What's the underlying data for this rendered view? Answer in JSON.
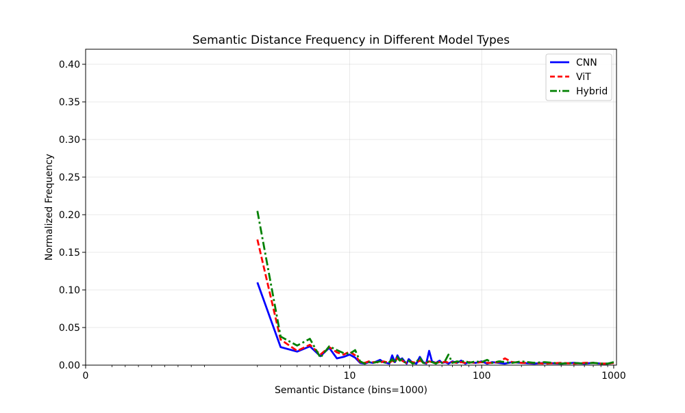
{
  "chart_data": {
    "type": "line",
    "title": "Semantic Distance Frequency in Different Model Types",
    "xlabel": "Semantic Distance (bins=1000)",
    "ylabel": "Normalized Frequency",
    "xscale": "symlog",
    "xlim": [
      0,
      1050
    ],
    "ylim": [
      0,
      0.42
    ],
    "xticks": [
      {
        "value": 0,
        "label": "0"
      },
      {
        "value": 10,
        "label": "10"
      },
      {
        "value": 100,
        "label": "100"
      },
      {
        "value": 1000,
        "label": "1000"
      }
    ],
    "yticks": [
      {
        "value": 0.0,
        "label": "0.00"
      },
      {
        "value": 0.05,
        "label": "0.05"
      },
      {
        "value": 0.1,
        "label": "0.10"
      },
      {
        "value": 0.15,
        "label": "0.15"
      },
      {
        "value": 0.2,
        "label": "0.20"
      },
      {
        "value": 0.25,
        "label": "0.25"
      },
      {
        "value": 0.3,
        "label": "0.30"
      },
      {
        "value": 0.35,
        "label": "0.35"
      },
      {
        "value": 0.4,
        "label": "0.40"
      }
    ],
    "grid": true,
    "legend_position": "top-right",
    "series": [
      {
        "name": "CNN",
        "color": "#0000ff",
        "dash": "solid",
        "x": [
          2,
          3,
          4,
          5,
          6,
          7,
          8,
          9,
          10,
          11,
          12,
          13,
          14,
          15,
          16,
          17,
          18,
          19,
          20,
          21,
          22,
          23,
          24,
          25,
          26,
          27,
          28,
          30,
          32,
          34,
          36,
          38,
          40,
          42,
          45,
          48,
          50,
          53,
          56,
          60,
          65,
          70,
          75,
          80,
          90,
          100,
          110,
          120,
          135,
          150,
          170,
          200,
          250,
          300,
          400,
          500,
          600,
          700,
          800,
          900,
          1000
        ],
        "y": [
          0.11,
          0.024,
          0.018,
          0.025,
          0.012,
          0.023,
          0.009,
          0.011,
          0.014,
          0.01,
          0.003,
          0.002,
          0.004,
          0.003,
          0.005,
          0.007,
          0.004,
          0.003,
          0.002,
          0.013,
          0.004,
          0.013,
          0.007,
          0.009,
          0.005,
          0.002,
          0.008,
          0.003,
          0.002,
          0.011,
          0.004,
          0.002,
          0.019,
          0.005,
          0.003,
          0.006,
          0.003,
          0.004,
          0.002,
          0.005,
          0.003,
          0.006,
          0.002,
          0.004,
          0.003,
          0.005,
          0.002,
          0.004,
          0.003,
          0.002,
          0.004,
          0.003,
          0.002,
          0.003,
          0.002,
          0.003,
          0.002,
          0.003,
          0.002,
          0.002,
          0.003
        ]
      },
      {
        "name": "ViT",
        "color": "#ff0000",
        "dash": "dashed",
        "x": [
          2,
          3,
          4,
          5,
          6,
          7,
          8,
          9,
          10,
          11,
          12,
          13,
          14,
          15,
          16,
          17,
          18,
          19,
          20,
          21,
          22,
          23,
          24,
          25,
          26,
          27,
          28,
          30,
          32,
          34,
          36,
          38,
          40,
          42,
          45,
          48,
          50,
          53,
          56,
          60,
          65,
          70,
          75,
          80,
          90,
          100,
          110,
          120,
          135,
          150,
          170,
          200,
          250,
          300,
          400,
          500,
          600,
          700,
          800,
          900,
          1000
        ],
        "y": [
          0.167,
          0.034,
          0.019,
          0.027,
          0.014,
          0.024,
          0.017,
          0.014,
          0.018,
          0.013,
          0.004,
          0.003,
          0.005,
          0.004,
          0.004,
          0.003,
          0.005,
          0.004,
          0.003,
          0.006,
          0.004,
          0.01,
          0.005,
          0.006,
          0.004,
          0.003,
          0.005,
          0.004,
          0.003,
          0.006,
          0.004,
          0.003,
          0.005,
          0.004,
          0.003,
          0.004,
          0.003,
          0.005,
          0.003,
          0.004,
          0.003,
          0.004,
          0.003,
          0.004,
          0.003,
          0.004,
          0.003,
          0.003,
          0.004,
          0.009,
          0.004,
          0.003,
          0.003,
          0.002,
          0.003,
          0.002,
          0.003,
          0.003,
          0.002,
          0.002,
          0.003
        ]
      },
      {
        "name": "Hybrid",
        "color": "#008000",
        "dash": "dashdot",
        "x": [
          2,
          3,
          4,
          5,
          6,
          7,
          8,
          9,
          10,
          11,
          12,
          13,
          14,
          15,
          16,
          17,
          18,
          19,
          20,
          21,
          22,
          23,
          24,
          25,
          26,
          27,
          28,
          30,
          32,
          34,
          36,
          38,
          40,
          42,
          45,
          48,
          50,
          53,
          56,
          60,
          65,
          70,
          75,
          80,
          90,
          100,
          110,
          120,
          135,
          150,
          170,
          200,
          250,
          300,
          400,
          500,
          600,
          700,
          800,
          900,
          1000
        ],
        "y": [
          0.205,
          0.038,
          0.026,
          0.035,
          0.01,
          0.025,
          0.02,
          0.016,
          0.015,
          0.02,
          0.005,
          0.002,
          0.004,
          0.003,
          0.004,
          0.005,
          0.004,
          0.003,
          0.004,
          0.008,
          0.003,
          0.011,
          0.006,
          0.008,
          0.004,
          0.003,
          0.006,
          0.002,
          0.004,
          0.01,
          0.003,
          0.002,
          0.006,
          0.004,
          0.002,
          0.005,
          0.003,
          0.006,
          0.014,
          0.003,
          0.005,
          0.004,
          0.006,
          0.003,
          0.005,
          0.004,
          0.007,
          0.003,
          0.005,
          0.004,
          0.003,
          0.005,
          0.003,
          0.004,
          0.002,
          0.003,
          0.002,
          0.003,
          0.002,
          0.002,
          0.004
        ]
      }
    ]
  }
}
